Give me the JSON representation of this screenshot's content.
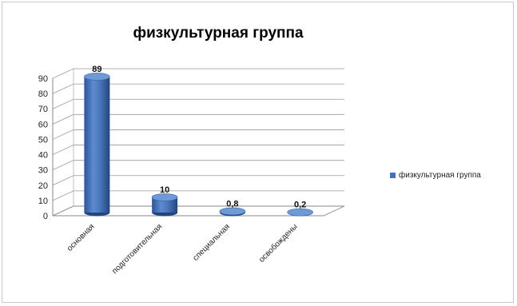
{
  "chart_data": {
    "type": "bar",
    "title": "физкультурная группа",
    "categories": [
      "основная",
      "подготовительная",
      "специальная",
      "освобождены"
    ],
    "series": [
      {
        "name": "физкультурная группа",
        "values": [
          89,
          10,
          0.8,
          0.2
        ],
        "labels": [
          "89",
          "10",
          "0,8",
          "0,2"
        ]
      }
    ],
    "ylim": [
      0,
      90
    ],
    "yticks": [
      0,
      10,
      20,
      30,
      40,
      50,
      60,
      70,
      80,
      90
    ],
    "grid": true,
    "legend": "right",
    "style": "3d-cylinder",
    "color": "#4673b7"
  }
}
